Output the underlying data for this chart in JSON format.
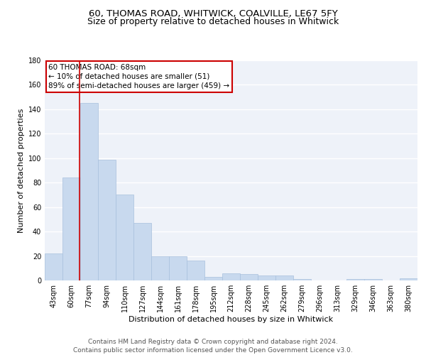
{
  "title1": "60, THOMAS ROAD, WHITWICK, COALVILLE, LE67 5FY",
  "title2": "Size of property relative to detached houses in Whitwick",
  "xlabel": "Distribution of detached houses by size in Whitwick",
  "ylabel": "Number of detached properties",
  "categories": [
    "43sqm",
    "60sqm",
    "77sqm",
    "94sqm",
    "110sqm",
    "127sqm",
    "144sqm",
    "161sqm",
    "178sqm",
    "195sqm",
    "212sqm",
    "228sqm",
    "245sqm",
    "262sqm",
    "279sqm",
    "296sqm",
    "313sqm",
    "329sqm",
    "346sqm",
    "363sqm",
    "380sqm"
  ],
  "values": [
    22,
    84,
    145,
    99,
    70,
    47,
    20,
    20,
    16,
    3,
    6,
    5,
    4,
    4,
    1,
    0,
    0,
    1,
    1,
    0,
    2
  ],
  "bar_color": "#c8d9ee",
  "bar_edge_color": "#a8c0dd",
  "vline_color": "#cc0000",
  "vline_pos": 1.47,
  "annotation_box_text": "60 THOMAS ROAD: 68sqm\n← 10% of detached houses are smaller (51)\n89% of semi-detached houses are larger (459) →",
  "annotation_box_color": "#cc0000",
  "ylim": [
    0,
    180
  ],
  "yticks": [
    0,
    20,
    40,
    60,
    80,
    100,
    120,
    140,
    160,
    180
  ],
  "footer_text": "Contains HM Land Registry data © Crown copyright and database right 2024.\nContains public sector information licensed under the Open Government Licence v3.0.",
  "background_color": "#eef2f9",
  "grid_color": "#ffffff",
  "title1_fontsize": 9.5,
  "title2_fontsize": 9,
  "axis_label_fontsize": 8,
  "tick_fontsize": 7,
  "annotation_fontsize": 7.5,
  "footer_fontsize": 6.5
}
